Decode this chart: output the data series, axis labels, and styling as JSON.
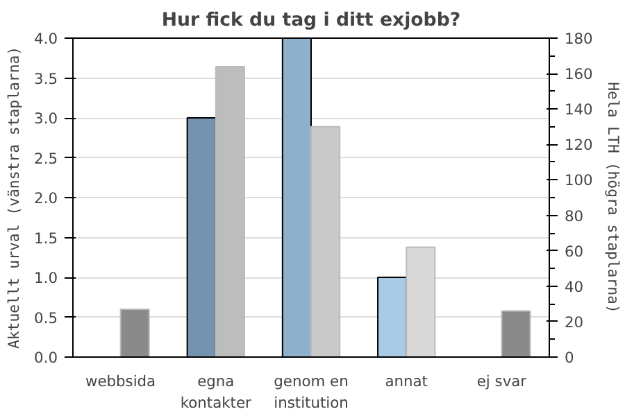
{
  "chart_data": {
    "type": "bar",
    "title": "Hur fick du tag i ditt exjobb?",
    "categories": [
      "webbsida",
      "egna\nkontakter",
      "genom en\ninstitution",
      "annat",
      "ej svar"
    ],
    "ylabel": "Aktuellt urval (vänstra staplarna)",
    "y2label": "Hela LTH (högra staplarna)",
    "ylim": [
      0,
      4
    ],
    "yticks": [
      {
        "value": 0,
        "label": "0.0"
      },
      0.5,
      {
        "value": 1,
        "label": "1.0"
      },
      1.5,
      {
        "value": 2,
        "label": "2.0"
      },
      2.5,
      {
        "value": 3,
        "label": "3.0"
      },
      3.5,
      {
        "value": 4,
        "label": "4.0"
      }
    ],
    "y2lim": [
      0,
      180
    ],
    "y2ticks": [
      0,
      20,
      40,
      60,
      80,
      100,
      120,
      140,
      160,
      180
    ],
    "grid": "y",
    "series": [
      {
        "values": [
          null,
          3,
          4,
          1,
          null
        ],
        "colors": [
          "#7593af",
          "#7593af",
          "#8fb0cb",
          "#aacbe6",
          "#aacbe6"
        ]
      },
      {
        "values": [
          27,
          164,
          130,
          62,
          26
        ],
        "axis": "y2",
        "colors": [
          "#8a8a8a",
          "#bdbdbd",
          "#c9c9c9",
          "#d9d9d9",
          "#8a8a8a"
        ]
      }
    ]
  }
}
